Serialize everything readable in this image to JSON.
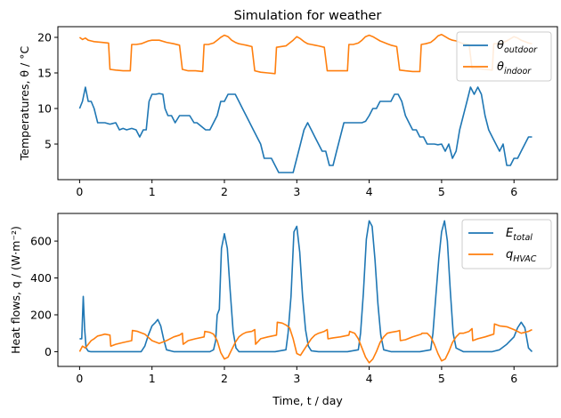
{
  "colors": {
    "blue": "#1f77b4",
    "orange": "#ff7f0e"
  },
  "chart_data": [
    {
      "type": "line",
      "title": "Simulation for weather",
      "xlabel": "",
      "ylabel": "Temperatures, θ / °C",
      "xlim": [
        -0.3,
        6.6
      ],
      "ylim": [
        0,
        21.5
      ],
      "xticks": [
        0,
        1,
        2,
        3,
        4,
        5,
        6
      ],
      "yticks": [
        5,
        10,
        15,
        20
      ],
      "legend_position": "top-right",
      "series": [
        {
          "name": "θ_outdoor",
          "legend_main": "θ",
          "legend_sub": "outdoor",
          "color": "#1f77b4",
          "x": [
            0,
            0.04,
            0.08,
            0.12,
            0.16,
            0.2,
            0.25,
            0.3,
            0.35,
            0.42,
            0.5,
            0.55,
            0.6,
            0.65,
            0.72,
            0.78,
            0.83,
            0.88,
            0.92,
            0.96,
            1.0,
            1.05,
            1.1,
            1.15,
            1.18,
            1.22,
            1.27,
            1.32,
            1.38,
            1.45,
            1.52,
            1.58,
            1.62,
            1.68,
            1.74,
            1.8,
            1.85,
            1.9,
            1.95,
            2.0,
            2.05,
            2.1,
            2.15,
            2.2,
            2.25,
            2.3,
            2.4,
            2.5,
            2.55,
            2.6,
            2.65,
            2.7,
            2.75,
            2.8,
            2.85,
            2.9,
            2.95,
            3.0,
            3.05,
            3.1,
            3.15,
            3.2,
            3.25,
            3.3,
            3.35,
            3.4,
            3.45,
            3.5,
            3.55,
            3.6,
            3.65,
            3.7,
            3.75,
            3.8,
            3.85,
            3.9,
            3.95,
            4.0,
            4.05,
            4.1,
            4.15,
            4.2,
            4.25,
            4.3,
            4.35,
            4.4,
            4.45,
            4.5,
            4.55,
            4.6,
            4.65,
            4.7,
            4.75,
            4.8,
            4.85,
            4.9,
            4.95,
            5.0,
            5.05,
            5.1,
            5.15,
            5.2,
            5.25,
            5.3,
            5.35,
            5.4,
            5.45,
            5.5,
            5.55,
            5.6,
            5.65,
            5.7,
            5.75,
            5.8,
            5.85,
            5.9,
            5.95,
            6.0,
            6.05,
            6.1,
            6.15,
            6.2,
            6.25
          ],
          "y": [
            10,
            11,
            13,
            11,
            11,
            10,
            8,
            8,
            8,
            7.8,
            8,
            7,
            7.2,
            7,
            7.2,
            7,
            6,
            7,
            7,
            11,
            12,
            12,
            12.1,
            12,
            10,
            9,
            9,
            8,
            9,
            9,
            9,
            8,
            8,
            7.5,
            7,
            7,
            8,
            9,
            11,
            11,
            12,
            12,
            12,
            11,
            10,
            9,
            7,
            5,
            3,
            3,
            3,
            2,
            1,
            1,
            1,
            1,
            1,
            3,
            5,
            7,
            8,
            7,
            6,
            5,
            4,
            4,
            2,
            2,
            4,
            6,
            8,
            8,
            8,
            8,
            8,
            8,
            8.2,
            9,
            10,
            10,
            11,
            11,
            11,
            11,
            12,
            12,
            11,
            9,
            8,
            7,
            7,
            6,
            6,
            5,
            5,
            5,
            4.9,
            5,
            4,
            5,
            3,
            4,
            7,
            9,
            11,
            13,
            12,
            13,
            12,
            9,
            7,
            6,
            5,
            4,
            5,
            2,
            2,
            3,
            3,
            4,
            5,
            6,
            6
          ]
        },
        {
          "name": "θ_indoor",
          "legend_main": "θ",
          "legend_sub": "indoor",
          "color": "#ff7f0e",
          "x": [
            0,
            0.04,
            0.08,
            0.12,
            0.16,
            0.2,
            0.3,
            0.4,
            0.42,
            0.5,
            0.6,
            0.7,
            0.72,
            0.78,
            0.85,
            0.9,
            0.95,
            1.0,
            1.1,
            1.2,
            1.3,
            1.38,
            1.42,
            1.5,
            1.6,
            1.7,
            1.72,
            1.78,
            1.85,
            1.9,
            1.95,
            2.0,
            2.05,
            2.1,
            2.15,
            2.2,
            2.25,
            2.3,
            2.38,
            2.42,
            2.5,
            2.6,
            2.7,
            2.72,
            2.78,
            2.85,
            2.9,
            2.95,
            3.0,
            3.05,
            3.1,
            3.15,
            3.2,
            3.25,
            3.3,
            3.38,
            3.42,
            3.5,
            3.6,
            3.7,
            3.72,
            3.78,
            3.85,
            3.9,
            3.95,
            4.0,
            4.05,
            4.1,
            4.15,
            4.2,
            4.25,
            4.3,
            4.38,
            4.42,
            4.5,
            4.6,
            4.7,
            4.72,
            4.78,
            4.85,
            4.9,
            4.95,
            5.0,
            5.05,
            5.1,
            5.15,
            5.2,
            5.25,
            5.3,
            5.38,
            5.42,
            5.5,
            5.6,
            5.7,
            5.72,
            5.78,
            5.85,
            5.9,
            5.95,
            6.0,
            6.05,
            6.1,
            6.15,
            6.2,
            6.25
          ],
          "y": [
            20,
            19.7,
            19.9,
            19.6,
            19.5,
            19.4,
            19.3,
            19.2,
            15.5,
            15.4,
            15.3,
            15.3,
            19,
            19,
            19.1,
            19.3,
            19.5,
            19.6,
            19.6,
            19.3,
            19.1,
            18.9,
            15.5,
            15.3,
            15.3,
            15.2,
            19,
            19,
            19.2,
            19.6,
            20,
            20.3,
            20.1,
            19.6,
            19.3,
            19.1,
            19,
            18.9,
            18.7,
            15.3,
            15.1,
            15,
            14.9,
            18.6,
            18.7,
            18.8,
            19.2,
            19.6,
            20.1,
            19.8,
            19.4,
            19.1,
            19,
            18.9,
            18.8,
            18.6,
            15.3,
            15.3,
            15.3,
            15.3,
            19,
            19,
            19.2,
            19.6,
            20.1,
            20.3,
            20.1,
            19.8,
            19.5,
            19.3,
            19.1,
            18.9,
            18.7,
            15.4,
            15.3,
            15.2,
            15.2,
            19,
            19.1,
            19.3,
            19.7,
            20.2,
            20.4,
            20.1,
            19.8,
            19.6,
            19.5,
            19.3,
            19.1,
            19,
            15.6,
            15.6,
            15.5,
            15.4,
            19.1,
            19.1,
            19.3,
            19.5,
            19.8,
            20.1,
            19.9,
            19.6,
            19.4,
            19.2,
            19.1
          ]
        }
      ]
    },
    {
      "type": "line",
      "title": "",
      "xlabel": "Time, t / day",
      "ylabel": "Heat flows, q / (W·m⁻²)",
      "xlim": [
        -0.3,
        6.6
      ],
      "ylim": [
        -80,
        750
      ],
      "xticks": [
        0,
        1,
        2,
        3,
        4,
        5,
        6
      ],
      "yticks": [
        0,
        200,
        400,
        600
      ],
      "legend_position": "top-right",
      "series": [
        {
          "name": "E_total",
          "legend_main": "E",
          "legend_sub": "total",
          "color": "#1f77b4",
          "x": [
            0,
            0.03,
            0.05,
            0.07,
            0.09,
            0.12,
            0.15,
            0.2,
            0.3,
            0.5,
            0.7,
            0.85,
            0.9,
            0.95,
            1.0,
            1.05,
            1.08,
            1.12,
            1.16,
            1.2,
            1.3,
            1.5,
            1.7,
            1.8,
            1.85,
            1.88,
            1.9,
            1.93,
            1.96,
            2.0,
            2.04,
            2.08,
            2.12,
            2.16,
            2.2,
            2.3,
            2.5,
            2.7,
            2.85,
            2.88,
            2.92,
            2.96,
            3.0,
            3.04,
            3.08,
            3.12,
            3.16,
            3.2,
            3.3,
            3.5,
            3.7,
            3.85,
            3.88,
            3.92,
            3.96,
            4.0,
            4.04,
            4.08,
            4.12,
            4.16,
            4.2,
            4.3,
            4.5,
            4.7,
            4.85,
            4.88,
            4.92,
            4.96,
            5.0,
            5.04,
            5.08,
            5.12,
            5.16,
            5.2,
            5.3,
            5.5,
            5.7,
            5.8,
            5.9,
            6.0,
            6.05,
            6.1,
            6.15,
            6.2,
            6.25
          ],
          "y": [
            70,
            70,
            300,
            120,
            20,
            3,
            0,
            0,
            0,
            0,
            0,
            0,
            30,
            90,
            140,
            160,
            175,
            140,
            70,
            10,
            0,
            0,
            0,
            0,
            10,
            60,
            200,
            230,
            560,
            640,
            560,
            330,
            110,
            20,
            0,
            0,
            0,
            0,
            10,
            100,
            300,
            650,
            680,
            540,
            300,
            120,
            30,
            5,
            0,
            0,
            0,
            10,
            100,
            320,
            610,
            710,
            680,
            500,
            260,
            90,
            10,
            0,
            0,
            0,
            10,
            100,
            300,
            500,
            650,
            710,
            600,
            330,
            100,
            20,
            0,
            0,
            0,
            10,
            40,
            80,
            130,
            160,
            130,
            20,
            0
          ]
        },
        {
          "name": "q_HVAC",
          "legend_main": "q",
          "legend_sub": "HVAC",
          "color": "#ff7f0e",
          "x": [
            0,
            0.04,
            0.08,
            0.12,
            0.16,
            0.2,
            0.25,
            0.3,
            0.35,
            0.42,
            0.43,
            0.5,
            0.6,
            0.72,
            0.73,
            0.8,
            0.9,
            1.0,
            1.1,
            1.2,
            1.3,
            1.38,
            1.42,
            1.43,
            1.5,
            1.6,
            1.72,
            1.73,
            1.8,
            1.85,
            1.9,
            1.95,
            2.0,
            2.05,
            2.1,
            2.15,
            2.2,
            2.25,
            2.3,
            2.38,
            2.42,
            2.43,
            2.5,
            2.6,
            2.72,
            2.73,
            2.8,
            2.85,
            2.9,
            2.95,
            3.0,
            3.05,
            3.1,
            3.15,
            3.2,
            3.25,
            3.3,
            3.38,
            3.42,
            3.43,
            3.5,
            3.6,
            3.72,
            3.73,
            3.8,
            3.85,
            3.9,
            3.95,
            4.0,
            4.05,
            4.1,
            4.15,
            4.2,
            4.25,
            4.3,
            4.38,
            4.42,
            4.43,
            4.5,
            4.6,
            4.72,
            4.73,
            4.8,
            4.85,
            4.9,
            4.95,
            5.0,
            5.05,
            5.1,
            5.15,
            5.2,
            5.25,
            5.3,
            5.38,
            5.42,
            5.43,
            5.5,
            5.6,
            5.72,
            5.73,
            5.8,
            5.9,
            6.0,
            6.1,
            6.2,
            6.25
          ],
          "y": [
            0,
            30,
            20,
            40,
            60,
            70,
            85,
            90,
            95,
            90,
            30,
            40,
            50,
            60,
            115,
            110,
            95,
            60,
            45,
            60,
            80,
            90,
            100,
            40,
            60,
            70,
            80,
            110,
            105,
            95,
            60,
            -5,
            -40,
            -30,
            10,
            50,
            80,
            95,
            105,
            110,
            120,
            40,
            70,
            80,
            90,
            160,
            155,
            145,
            130,
            70,
            -10,
            -20,
            10,
            40,
            70,
            90,
            100,
            110,
            120,
            70,
            75,
            80,
            90,
            110,
            100,
            70,
            20,
            -30,
            -60,
            -40,
            0,
            50,
            80,
            100,
            105,
            110,
            115,
            60,
            65,
            80,
            95,
            100,
            100,
            80,
            40,
            -10,
            -50,
            -40,
            0,
            50,
            80,
            100,
            100,
            110,
            125,
            60,
            70,
            80,
            95,
            150,
            140,
            135,
            120,
            100,
            110,
            120
          ]
        }
      ]
    }
  ]
}
